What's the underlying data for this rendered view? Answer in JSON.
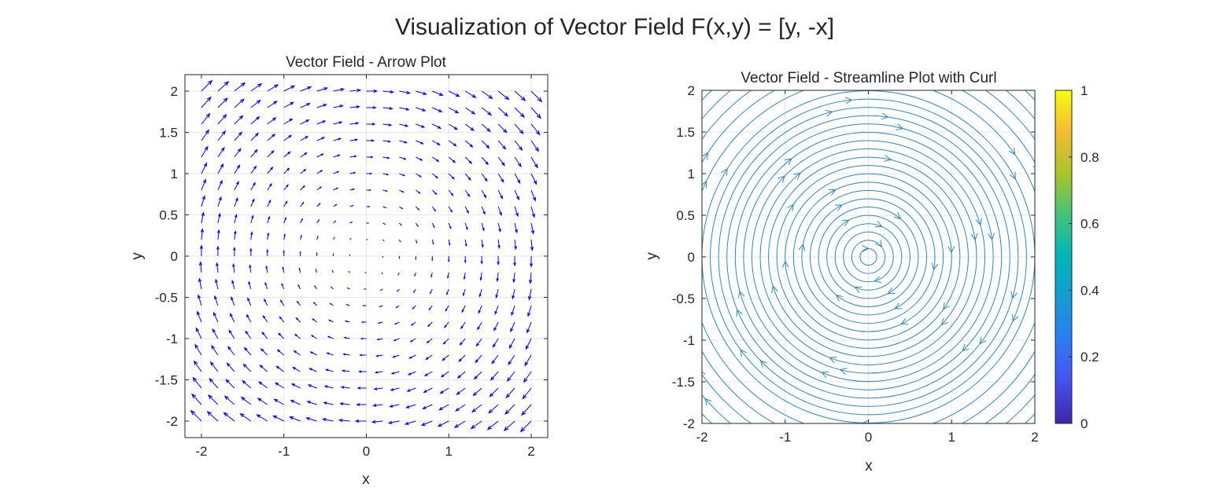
{
  "figure": {
    "title": "Visualization of Vector Field F(x,y) = [y, -x]"
  },
  "chart_data": [
    {
      "type": "quiver",
      "title": "Vector Field - Arrow Plot",
      "xlabel": "x",
      "ylabel": "y",
      "field": {
        "u": "y",
        "v": "-x"
      },
      "grid_x": [
        -2.0,
        -1.8,
        -1.6,
        -1.4,
        -1.2,
        -1.0,
        -0.8,
        -0.6,
        -0.4,
        -0.2,
        0.0,
        0.2,
        0.4,
        0.6,
        0.8,
        1.0,
        1.2,
        1.4,
        1.6,
        1.8,
        2.0
      ],
      "grid_y": [
        -2.0,
        -1.8,
        -1.6,
        -1.4,
        -1.2,
        -1.0,
        -0.8,
        -0.6,
        -0.4,
        -0.2,
        0.0,
        0.2,
        0.4,
        0.6,
        0.8,
        1.0,
        1.2,
        1.4,
        1.6,
        1.8,
        2.0
      ],
      "xlim": [
        -2.2,
        2.2
      ],
      "ylim": [
        -2.2,
        2.2
      ],
      "xticks": [
        -2,
        -1,
        0,
        1,
        2
      ],
      "yticks": [
        -2,
        -1.5,
        -1,
        -0.5,
        0,
        0.5,
        1,
        1.5,
        2
      ],
      "xtick_labels": [
        "-2",
        "-1",
        "0",
        "1",
        "2"
      ],
      "ytick_labels": [
        "-2",
        "-1.5",
        "-1",
        "-0.5",
        "0",
        "0.5",
        "1",
        "1.5",
        "2"
      ],
      "grid": true,
      "color": "#0000ff"
    },
    {
      "type": "streamline",
      "title": "Vector Field - Streamline Plot with Curl",
      "xlabel": "x",
      "ylabel": "y",
      "field": {
        "u": "y",
        "v": "-x"
      },
      "direction": "clockwise",
      "radii": [
        0.1,
        0.2,
        0.3,
        0.4,
        0.5,
        0.6,
        0.7,
        0.8,
        0.9,
        1.0,
        1.1,
        1.2,
        1.3,
        1.4,
        1.5,
        1.6,
        1.7,
        1.8,
        1.9,
        2.0,
        2.15,
        2.3,
        2.45,
        2.6,
        2.75
      ],
      "xlim": [
        -2,
        2
      ],
      "ylim": [
        -2,
        2
      ],
      "xticks": [
        -2,
        -1,
        0,
        1,
        2
      ],
      "yticks": [
        -2,
        -1.5,
        -1,
        -0.5,
        0,
        0.5,
        1,
        1.5,
        2
      ],
      "xtick_labels": [
        "-2",
        "-1",
        "0",
        "1",
        "2"
      ],
      "ytick_labels": [
        "-2",
        "-1.5",
        "-1",
        "-0.5",
        "0",
        "0.5",
        "1",
        "1.5",
        "2"
      ],
      "grid": true,
      "color": "#2f86c2",
      "colorbar": {
        "colormap": "parula",
        "range": [
          0,
          1
        ],
        "ticks": [
          0,
          0.2,
          0.4,
          0.6,
          0.8,
          1
        ],
        "tick_labels": [
          "0",
          "0.2",
          "0.4",
          "0.6",
          "0.8",
          "1"
        ]
      }
    }
  ]
}
